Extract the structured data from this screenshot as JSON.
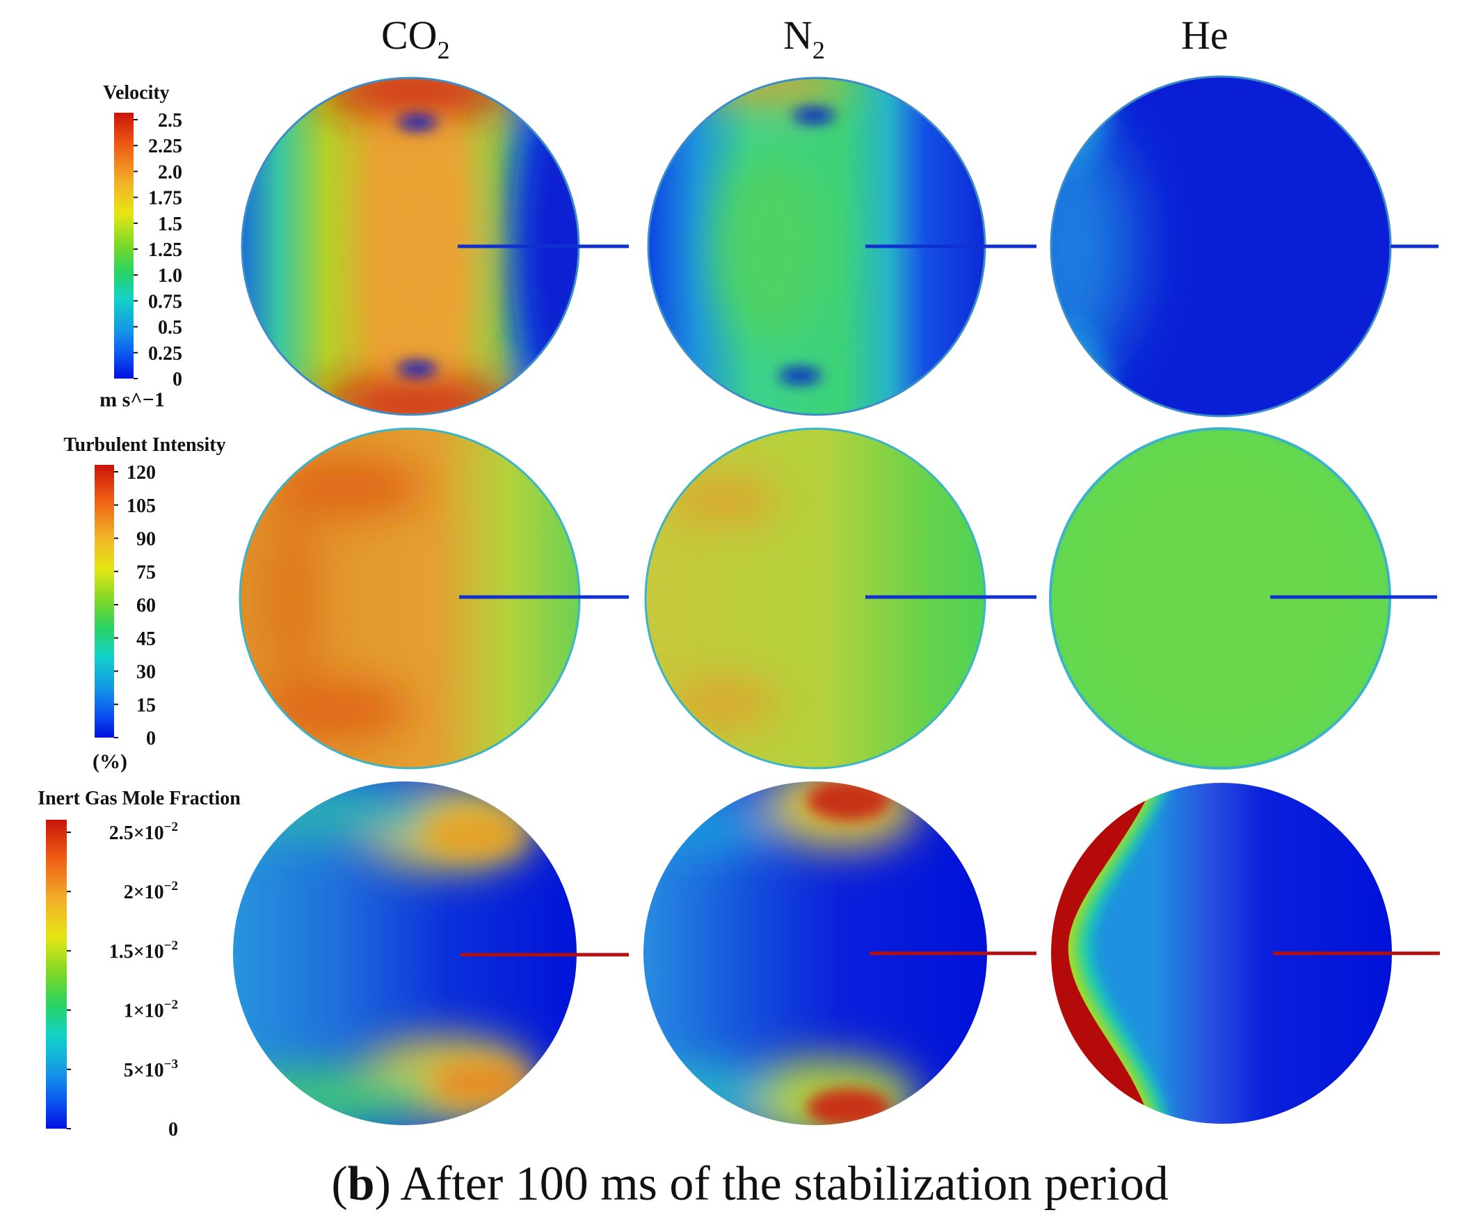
{
  "columns": [
    {
      "label": "CO",
      "sub": "2"
    },
    {
      "label": "N",
      "sub": "2"
    },
    {
      "label": "He",
      "sub": ""
    }
  ],
  "legends": [
    {
      "title": "Velocity",
      "ticks": [
        "2.5",
        "2.25",
        "2.0",
        "1.75",
        "1.5",
        "1.25",
        "1.0",
        "0.75",
        "0.5",
        "0.25",
        "0"
      ],
      "unit": "m s^−1"
    },
    {
      "title": "Turbulent Intensity",
      "ticks": [
        "120",
        "105",
        "90",
        "75",
        "60",
        "45",
        "30",
        "15",
        "0"
      ],
      "unit": "(%)"
    },
    {
      "title": "Inert Gas Mole Fraction",
      "ticks": [
        {
          "mant": "2.5×10",
          "exp": "−2"
        },
        {
          "mant": "2×10",
          "exp": "−2"
        },
        {
          "mant": "1.5×10",
          "exp": "−2"
        },
        {
          "mant": "1×10",
          "exp": "−2"
        },
        {
          "mant": "5×10",
          "exp": "−3"
        },
        {
          "mant": "0",
          "exp": ""
        }
      ],
      "unit": ""
    }
  ],
  "caption": {
    "letter": "b",
    "text": " After 100 ms of the stabilization period"
  },
  "colors": {
    "jet": [
      "#0000d8",
      "#0a3cf0",
      "#1496dc",
      "#14d2b4",
      "#3cd23c",
      "#b4dc14",
      "#f0dc14",
      "#f0a028",
      "#e06414",
      "#c81e0a"
    ],
    "probe_blue": "#1030d0",
    "probe_red": "#b01010"
  }
}
